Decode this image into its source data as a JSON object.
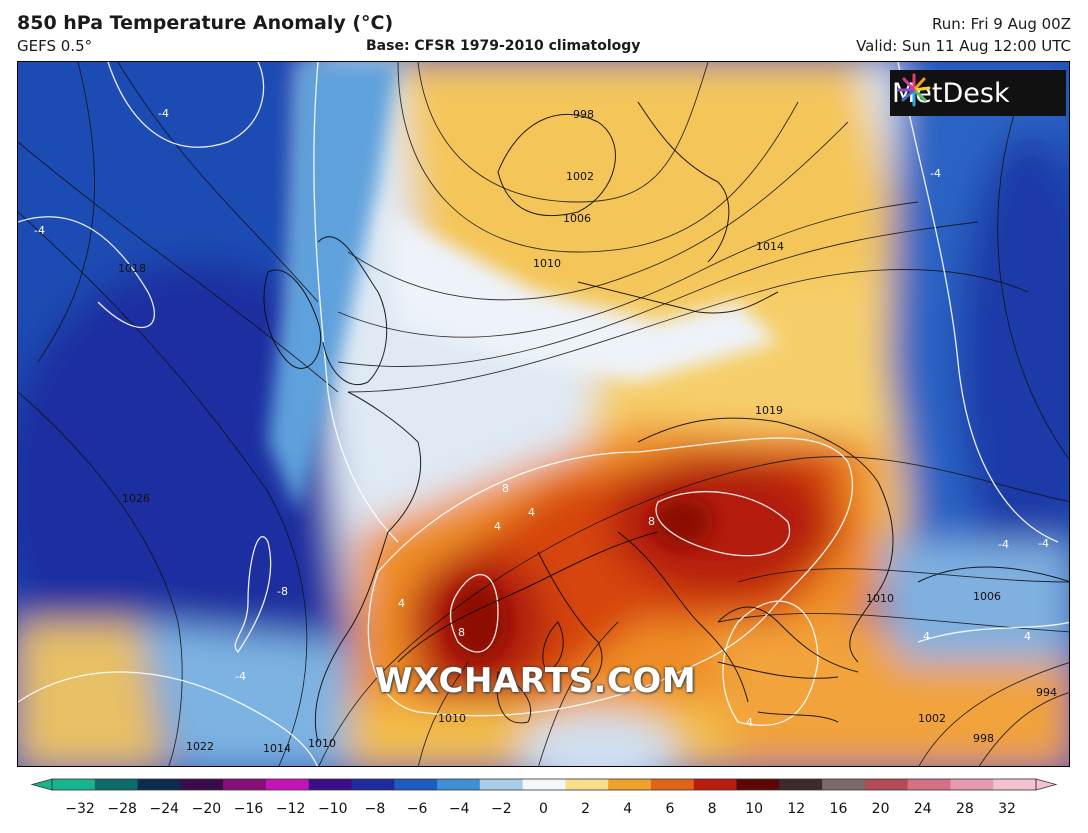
{
  "header": {
    "title": "850 hPa Temperature Anomaly (°C)",
    "model": "GEFS 0.5°",
    "base": "Base: CFSR 1979-2010 climatology",
    "run": "Run: Fri 9 Aug 00Z",
    "valid": "Valid: Sun 11 Aug 12:00 UTC"
  },
  "logo": {
    "text": "MetDesk",
    "icon": "metdesk-starburst-logo"
  },
  "watermark": "WXCHARTS.COM",
  "isobar_labels": [
    "998",
    "1002",
    "1006",
    "1010",
    "1014",
    "1018",
    "1019",
    "1022",
    "1026",
    "1010",
    "1014",
    "1010",
    "1006",
    "994",
    "998",
    "1002",
    "1010"
  ],
  "anomaly_labels": [
    "-4",
    "-4",
    "-4",
    "-4",
    "-8",
    "-4",
    "8",
    "4",
    "8",
    "4",
    "8",
    "4",
    "4",
    "4",
    "4",
    "-4"
  ],
  "colorbar": {
    "ticks": [
      "−32",
      "−28",
      "−24",
      "−20",
      "−16",
      "−12",
      "−10",
      "−8",
      "−6",
      "−4",
      "−2",
      "0",
      "2",
      "4",
      "6",
      "8",
      "10",
      "12",
      "16",
      "20",
      "24",
      "28",
      "32"
    ],
    "colors": [
      "#17b58b",
      "#0b6d6a",
      "#0d2b4f",
      "#3a0c4e",
      "#8a0e7a",
      "#c515b7",
      "#3b0d8a",
      "#1f2aa0",
      "#1d5cc2",
      "#3f8fd6",
      "#a9cde9",
      "#f4f7fa",
      "#f8df8a",
      "#f1a02a",
      "#e06316",
      "#bb1d0c",
      "#5e0606",
      "#3c2b2b",
      "#7a6a6a",
      "#b34a56",
      "#d57086",
      "#e89ab0",
      "#f4c1cf"
    ]
  },
  "palette": {
    "deep_blue": "#1a3fa8",
    "blue": "#2d6cc4",
    "light_blue": "#9cc7ea",
    "white": "#f1f4f8",
    "yellow": "#f6d06b",
    "orange": "#ef8a22",
    "red": "#d2400f",
    "dark_red": "#a41208"
  }
}
